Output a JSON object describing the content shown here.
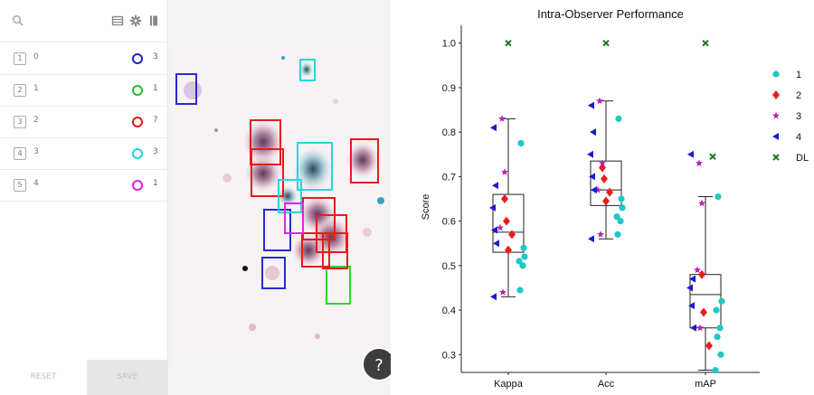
{
  "toolbar": {
    "icons": [
      "search-icon",
      "table-icon",
      "gear-icon",
      "book-icon"
    ]
  },
  "classes": [
    {
      "key": "1",
      "name": "0",
      "color": "#2020d0",
      "count": "3"
    },
    {
      "key": "2",
      "name": "1",
      "color": "#22c022",
      "count": "1"
    },
    {
      "key": "3",
      "name": "2",
      "color": "#e01a1a",
      "count": "7"
    },
    {
      "key": "4",
      "name": "3",
      "color": "#22d4d4",
      "count": "3"
    },
    {
      "key": "5",
      "name": "4",
      "color": "#e020e0",
      "count": "1"
    }
  ],
  "buttons": {
    "reset": "RESET",
    "save": "SAVE",
    "help": "?"
  },
  "annotations_box_colors": {
    "0": "#2a2ad4",
    "1": "#2ed62e",
    "2": "#e81c1c",
    "3": "#22d8d8",
    "4": "#e622e6"
  },
  "chart_data": {
    "type": "box-strip",
    "title": "Intra-Observer Performance",
    "ylabel": "Score",
    "xlabel": "",
    "categories": [
      "Kappa",
      "Acc",
      "mAP"
    ],
    "ylim": [
      0.26,
      1.04
    ],
    "yticks": [
      "0.3",
      "0.4",
      "0.5",
      "0.6",
      "0.7",
      "0.8",
      "0.9",
      "1.0"
    ],
    "grid": false,
    "legend_position": "right",
    "boxes": [
      {
        "category": "Kappa",
        "whisker_low": 0.43,
        "q1": 0.53,
        "median": 0.575,
        "q3": 0.66,
        "whisker_high": 0.83
      },
      {
        "category": "Acc",
        "whisker_low": 0.56,
        "q1": 0.635,
        "median": 0.67,
        "q3": 0.735,
        "whisker_high": 0.87
      },
      {
        "category": "mAP",
        "whisker_low": 0.265,
        "q1": 0.36,
        "median": 0.435,
        "q3": 0.48,
        "whisker_high": 0.655
      }
    ],
    "series": [
      {
        "name": "1",
        "marker": "circle",
        "color": "#1fc7c7",
        "values": {
          "Kappa": [
            0.775,
            0.52,
            0.51,
            0.5,
            0.445,
            0.54
          ],
          "Acc": [
            0.83,
            0.63,
            0.61,
            0.6,
            0.57,
            0.65
          ],
          "mAP": [
            0.655,
            0.42,
            0.4,
            0.36,
            0.34,
            0.3,
            0.265
          ]
        }
      },
      {
        "name": "2",
        "marker": "diamond",
        "color": "#e81c1c",
        "values": {
          "Kappa": [
            0.65,
            0.6,
            0.57,
            0.535
          ],
          "Acc": [
            0.72,
            0.695,
            0.665,
            0.645
          ],
          "mAP": [
            0.48,
            0.395,
            0.32
          ]
        }
      },
      {
        "name": "3",
        "marker": "star",
        "color": "#b51fb5",
        "values": {
          "Kappa": [
            0.83,
            0.71,
            0.585,
            0.44
          ],
          "Acc": [
            0.87,
            0.73,
            0.67,
            0.57
          ],
          "mAP": [
            0.73,
            0.64,
            0.49,
            0.36
          ]
        }
      },
      {
        "name": "4",
        "marker": "triangle-left",
        "color": "#1a1ad4",
        "values": {
          "Kappa": [
            0.81,
            0.68,
            0.63,
            0.58,
            0.55,
            0.43
          ],
          "Acc": [
            0.86,
            0.8,
            0.75,
            0.7,
            0.67,
            0.56
          ],
          "mAP": [
            0.75,
            0.47,
            0.45,
            0.41,
            0.36
          ]
        }
      },
      {
        "name": "DL",
        "marker": "x",
        "color": "#1a7a1a",
        "values": {
          "Kappa": [
            1.0
          ],
          "Acc": [
            1.0
          ],
          "mAP": [
            1.0,
            0.745
          ]
        }
      }
    ]
  }
}
